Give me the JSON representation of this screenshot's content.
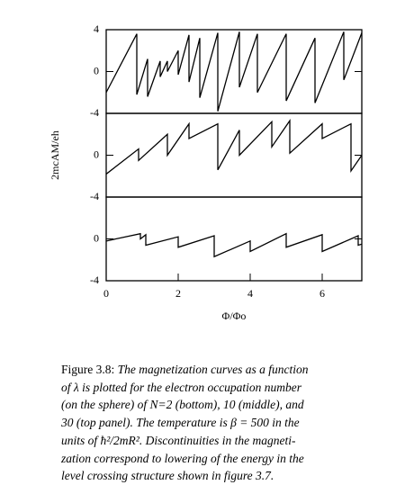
{
  "chart_data": [
    {
      "type": "line",
      "color": "#000000",
      "xlim": [
        0,
        7.1
      ],
      "ylim": [
        -4,
        4
      ],
      "yticks": [
        -4,
        0,
        4
      ],
      "x": [
        0,
        0.85,
        0.85,
        1.15,
        1.15,
        1.5,
        1.5,
        1.7,
        1.7,
        2.0,
        2.0,
        2.3,
        2.3,
        2.6,
        2.6,
        3.1,
        3.1,
        3.7,
        3.7,
        4.2,
        4.2,
        5.0,
        5.0,
        5.8,
        5.8,
        6.6,
        6.6,
        7.1
      ],
      "values": [
        -2,
        3.6,
        -2.2,
        1.2,
        -2.4,
        1,
        -0.5,
        1,
        0,
        2,
        -0.3,
        3.5,
        -1,
        3.2,
        -2.5,
        3.7,
        -3.8,
        3.8,
        -1.5,
        3.6,
        -2,
        3.6,
        -2.8,
        3.2,
        -3,
        3.8,
        -0.8,
        3.7
      ]
    },
    {
      "type": "line",
      "color": "#000000",
      "ylabel": "2mcAM/eh",
      "xlim": [
        0,
        7.1
      ],
      "ylim": [
        -4,
        4
      ],
      "yticks": [
        -4,
        0
      ],
      "x": [
        0,
        0.9,
        0.9,
        1.7,
        1.7,
        2.3,
        2.3,
        3.1,
        3.1,
        3.7,
        3.7,
        4.6,
        4.6,
        5.1,
        5.1,
        6.0,
        6.0,
        6.8,
        6.8,
        7.1
      ],
      "values": [
        -1.8,
        0.6,
        -0.5,
        2,
        0,
        3,
        1.6,
        3,
        -1.4,
        2.4,
        0,
        3.2,
        0.8,
        3.3,
        0.2,
        3,
        1.6,
        3,
        -1.5,
        0
      ]
    },
    {
      "type": "line",
      "color": "#000000",
      "xlabel": "Φ/Φo",
      "xlim": [
        0,
        7.1
      ],
      "xticks": [
        0,
        2,
        4,
        6
      ],
      "ylim": [
        -4,
        4
      ],
      "yticks": [
        -4,
        0
      ],
      "x": [
        0,
        0.95,
        0.95,
        1.1,
        1.1,
        2.0,
        2.0,
        3.0,
        3.0,
        4.0,
        4.0,
        5.0,
        5.0,
        6.0,
        6.0,
        7.0,
        7.0,
        7.1
      ],
      "values": [
        -0.2,
        0.5,
        0,
        0.4,
        -0.6,
        0.2,
        -0.8,
        0.3,
        -1.7,
        -0.2,
        -1.2,
        0.5,
        -0.8,
        0.4,
        -1.2,
        0.3,
        -0.6,
        -0.5
      ]
    }
  ],
  "caption": {
    "label": "Figure 3.8:",
    "lines": [
      "The magnetization curves as a function",
      "of λ is plotted for the electron occupation number",
      "(on the sphere) of N=2 (bottom), 10 (middle), and",
      "30 (top panel). The temperature is β = 500 in the",
      "units of ħ²/2mR². Discontinuities in the magneti-",
      "zation correspond to lowering of the energy in the",
      "level crossing structure shown in figure 3.7."
    ]
  }
}
